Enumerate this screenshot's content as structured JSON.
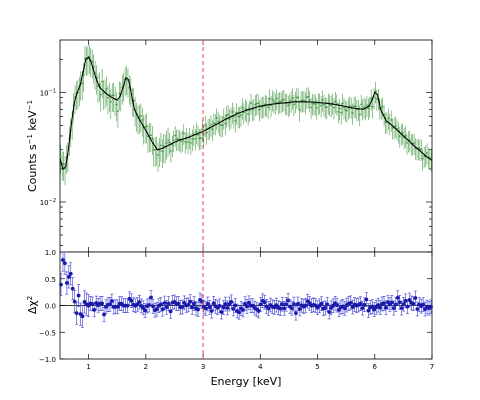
{
  "chart_data": [
    {
      "type": "scatter",
      "panel": "spectrum",
      "xlabel": "",
      "ylabel": "Counts s⁻¹ keV⁻¹",
      "ylabel_parts": {
        "base": "Counts s",
        "exp1": "−1",
        "mid": " keV",
        "exp2": "−1"
      },
      "xlim": [
        0.5,
        7.0
      ],
      "ylim": [
        0.0035,
        0.3
      ],
      "yscale": "log",
      "yticks": [
        {
          "value": 0.01,
          "label": "10",
          "exp": "−2"
        },
        {
          "value": 0.1,
          "label": "10",
          "exp": "−1"
        }
      ],
      "vline": {
        "x": 3.0,
        "color": "#e8484f",
        "style": "dashed"
      },
      "colors": {
        "data": "#4a9a4a",
        "model": "#000000"
      },
      "series": [
        {
          "kind": "data-with-errors",
          "x_range": [
            0.5,
            7.0
          ],
          "n_points": 260,
          "err_frac": 0.22
        },
        {
          "kind": "model-line"
        }
      ],
      "model": {
        "x": [
          0.5,
          0.55,
          0.6,
          0.65,
          0.7,
          0.75,
          0.8,
          0.85,
          0.9,
          0.95,
          1.0,
          1.05,
          1.1,
          1.15,
          1.2,
          1.3,
          1.4,
          1.5,
          1.55,
          1.6,
          1.65,
          1.7,
          1.75,
          1.8,
          1.9,
          2.0,
          2.1,
          2.2,
          2.3,
          2.4,
          2.5,
          2.6,
          2.7,
          2.8,
          3.0,
          3.2,
          3.4,
          3.6,
          3.8,
          4.0,
          4.2,
          4.4,
          4.6,
          4.8,
          5.0,
          5.2,
          5.4,
          5.6,
          5.8,
          5.9,
          5.95,
          6.0,
          6.05,
          6.1,
          6.2,
          6.3,
          6.4,
          6.5,
          6.6,
          6.7,
          6.8,
          6.9,
          7.0
        ],
        "y": [
          0.025,
          0.02,
          0.021,
          0.031,
          0.052,
          0.08,
          0.1,
          0.115,
          0.15,
          0.2,
          0.21,
          0.185,
          0.15,
          0.125,
          0.11,
          0.098,
          0.09,
          0.085,
          0.092,
          0.11,
          0.135,
          0.13,
          0.095,
          0.07,
          0.055,
          0.045,
          0.036,
          0.03,
          0.031,
          0.033,
          0.035,
          0.037,
          0.038,
          0.04,
          0.044,
          0.05,
          0.057,
          0.064,
          0.07,
          0.075,
          0.078,
          0.08,
          0.082,
          0.082,
          0.081,
          0.079,
          0.076,
          0.072,
          0.07,
          0.075,
          0.085,
          0.1,
          0.095,
          0.07,
          0.055,
          0.05,
          0.045,
          0.04,
          0.036,
          0.032,
          0.029,
          0.026,
          0.024
        ]
      }
    },
    {
      "type": "scatter",
      "panel": "residuals",
      "xlabel": "Energy [keV]",
      "ylabel": "Δχ²",
      "ylabel_parts": {
        "base": "Δχ",
        "exp": "2"
      },
      "xlim": [
        0.5,
        7.0
      ],
      "ylim": [
        -1.0,
        1.0
      ],
      "xticks": [
        1,
        2,
        3,
        4,
        5,
        6,
        7
      ],
      "yticks": [
        -1.0,
        -0.5,
        0.0,
        0.5,
        1.0
      ],
      "ytick_labels": [
        "−1.0",
        "−0.5",
        "0.0",
        "0.5",
        "1.0"
      ],
      "hline": {
        "y": 0.0,
        "color": "#000000"
      },
      "vline": {
        "x": 3.0,
        "color": "#e8484f",
        "style": "dashed"
      },
      "colors": {
        "data": "#1a1aa8",
        "errors": "#3b3bd6"
      },
      "series": [
        {
          "kind": "residual-points",
          "x_range": [
            0.5,
            7.0
          ],
          "n_points": 190,
          "err": 0.13
        }
      ]
    }
  ]
}
